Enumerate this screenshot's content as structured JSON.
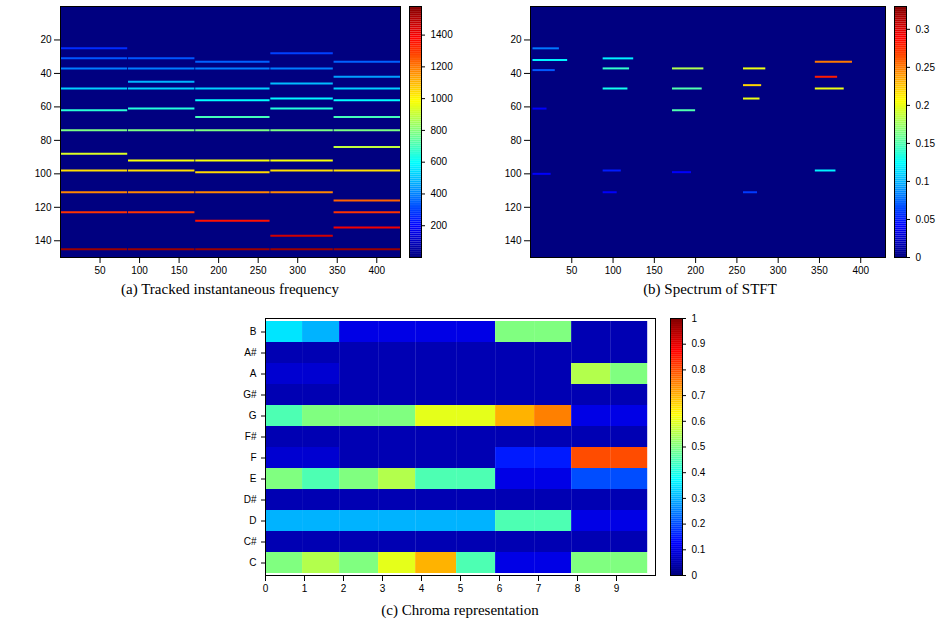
{
  "chart_data": [
    {
      "type": "heatmap",
      "title": "(a) Tracked instantaneous frequency",
      "xlim": [
        0,
        430
      ],
      "xticks": [
        50,
        100,
        150,
        200,
        250,
        300,
        350,
        400
      ],
      "ylim": [
        0,
        150
      ],
      "yticks": [
        20,
        40,
        60,
        80,
        100,
        120,
        140
      ],
      "background_value": 0,
      "colorbar_range": [
        0,
        1580
      ],
      "colorbar_ticks": [
        200,
        400,
        600,
        800,
        1000,
        1200,
        1400
      ],
      "segments": [
        {
          "bin": 25,
          "x_start": 1,
          "x_end": 85,
          "value": 265
        },
        {
          "bin": 31,
          "x_start": 1,
          "x_end": 85,
          "value": 330
        },
        {
          "bin": 37,
          "x_start": 1,
          "x_end": 85,
          "value": 392
        },
        {
          "bin": 49,
          "x_start": 1,
          "x_end": 85,
          "value": 520
        },
        {
          "bin": 62,
          "x_start": 1,
          "x_end": 85,
          "value": 657
        },
        {
          "bin": 74,
          "x_start": 1,
          "x_end": 85,
          "value": 785
        },
        {
          "bin": 88,
          "x_start": 1,
          "x_end": 85,
          "value": 933
        },
        {
          "bin": 98,
          "x_start": 1,
          "x_end": 85,
          "value": 1040
        },
        {
          "bin": 111,
          "x_start": 1,
          "x_end": 85,
          "value": 1177
        },
        {
          "bin": 123,
          "x_start": 1,
          "x_end": 85,
          "value": 1305
        },
        {
          "bin": 145,
          "x_start": 1,
          "x_end": 85,
          "value": 1538
        },
        {
          "bin": 31,
          "x_start": 86,
          "x_end": 170,
          "value": 330
        },
        {
          "bin": 37,
          "x_start": 86,
          "x_end": 170,
          "value": 392
        },
        {
          "bin": 45,
          "x_start": 86,
          "x_end": 170,
          "value": 478
        },
        {
          "bin": 49,
          "x_start": 86,
          "x_end": 170,
          "value": 520
        },
        {
          "bin": 61,
          "x_start": 86,
          "x_end": 170,
          "value": 647
        },
        {
          "bin": 74,
          "x_start": 86,
          "x_end": 170,
          "value": 785
        },
        {
          "bin": 92,
          "x_start": 86,
          "x_end": 170,
          "value": 975
        },
        {
          "bin": 98,
          "x_start": 86,
          "x_end": 170,
          "value": 1040
        },
        {
          "bin": 111,
          "x_start": 86,
          "x_end": 170,
          "value": 1177
        },
        {
          "bin": 123,
          "x_start": 86,
          "x_end": 170,
          "value": 1305
        },
        {
          "bin": 145,
          "x_start": 86,
          "x_end": 170,
          "value": 1538
        },
        {
          "bin": 33,
          "x_start": 171,
          "x_end": 265,
          "value": 350
        },
        {
          "bin": 37,
          "x_start": 171,
          "x_end": 265,
          "value": 392
        },
        {
          "bin": 49,
          "x_start": 171,
          "x_end": 265,
          "value": 520
        },
        {
          "bin": 56,
          "x_start": 171,
          "x_end": 265,
          "value": 594
        },
        {
          "bin": 66,
          "x_start": 171,
          "x_end": 265,
          "value": 700
        },
        {
          "bin": 74,
          "x_start": 171,
          "x_end": 265,
          "value": 785
        },
        {
          "bin": 92,
          "x_start": 171,
          "x_end": 265,
          "value": 975
        },
        {
          "bin": 99,
          "x_start": 171,
          "x_end": 265,
          "value": 1050
        },
        {
          "bin": 111,
          "x_start": 171,
          "x_end": 265,
          "value": 1177
        },
        {
          "bin": 128,
          "x_start": 171,
          "x_end": 265,
          "value": 1357
        },
        {
          "bin": 145,
          "x_start": 171,
          "x_end": 265,
          "value": 1538
        },
        {
          "bin": 28,
          "x_start": 266,
          "x_end": 345,
          "value": 297
        },
        {
          "bin": 37,
          "x_start": 266,
          "x_end": 345,
          "value": 392
        },
        {
          "bin": 46,
          "x_start": 266,
          "x_end": 345,
          "value": 488
        },
        {
          "bin": 55,
          "x_start": 266,
          "x_end": 345,
          "value": 583
        },
        {
          "bin": 61,
          "x_start": 266,
          "x_end": 345,
          "value": 647
        },
        {
          "bin": 74,
          "x_start": 266,
          "x_end": 345,
          "value": 785
        },
        {
          "bin": 92,
          "x_start": 266,
          "x_end": 345,
          "value": 975
        },
        {
          "bin": 98,
          "x_start": 266,
          "x_end": 345,
          "value": 1040
        },
        {
          "bin": 111,
          "x_start": 266,
          "x_end": 345,
          "value": 1177
        },
        {
          "bin": 137,
          "x_start": 266,
          "x_end": 345,
          "value": 1453
        },
        {
          "bin": 145,
          "x_start": 266,
          "x_end": 345,
          "value": 1538
        },
        {
          "bin": 33,
          "x_start": 346,
          "x_end": 430,
          "value": 350
        },
        {
          "bin": 42,
          "x_start": 346,
          "x_end": 430,
          "value": 445
        },
        {
          "bin": 49,
          "x_start": 346,
          "x_end": 430,
          "value": 520
        },
        {
          "bin": 56,
          "x_start": 346,
          "x_end": 430,
          "value": 594
        },
        {
          "bin": 66,
          "x_start": 346,
          "x_end": 430,
          "value": 700
        },
        {
          "bin": 74,
          "x_start": 346,
          "x_end": 430,
          "value": 785
        },
        {
          "bin": 84,
          "x_start": 346,
          "x_end": 430,
          "value": 891
        },
        {
          "bin": 98,
          "x_start": 346,
          "x_end": 430,
          "value": 1040
        },
        {
          "bin": 116,
          "x_start": 346,
          "x_end": 430,
          "value": 1230
        },
        {
          "bin": 123,
          "x_start": 346,
          "x_end": 430,
          "value": 1305
        },
        {
          "bin": 132,
          "x_start": 346,
          "x_end": 430,
          "value": 1400
        },
        {
          "bin": 145,
          "x_start": 346,
          "x_end": 430,
          "value": 1538
        }
      ]
    },
    {
      "type": "heatmap",
      "title": "(b) Spectrum of STFT",
      "xlim": [
        0,
        430
      ],
      "xticks": [
        50,
        100,
        150,
        200,
        250,
        300,
        350,
        400
      ],
      "ylim": [
        0,
        150
      ],
      "yticks": [
        20,
        40,
        60,
        80,
        100,
        120,
        140
      ],
      "background_value": 0,
      "colorbar_range": [
        0,
        0.33
      ],
      "colorbar_ticks": [
        0,
        0.05,
        0.1,
        0.15,
        0.2,
        0.25,
        0.3
      ],
      "segments": [
        {
          "bin": 25,
          "x_start": 3,
          "x_end": 35,
          "value": 0.08
        },
        {
          "bin": 32,
          "x_start": 3,
          "x_end": 45,
          "value": 0.12
        },
        {
          "bin": 38,
          "x_start": 3,
          "x_end": 30,
          "value": 0.07
        },
        {
          "bin": 61,
          "x_start": 3,
          "x_end": 20,
          "value": 0.04
        },
        {
          "bin": 100,
          "x_start": 3,
          "x_end": 25,
          "value": 0.04
        },
        {
          "bin": 31,
          "x_start": 88,
          "x_end": 125,
          "value": 0.12
        },
        {
          "bin": 37,
          "x_start": 88,
          "x_end": 120,
          "value": 0.14
        },
        {
          "bin": 49,
          "x_start": 88,
          "x_end": 118,
          "value": 0.13
        },
        {
          "bin": 98,
          "x_start": 88,
          "x_end": 110,
          "value": 0.05
        },
        {
          "bin": 111,
          "x_start": 88,
          "x_end": 105,
          "value": 0.04
        },
        {
          "bin": 37,
          "x_start": 172,
          "x_end": 210,
          "value": 0.18
        },
        {
          "bin": 49,
          "x_start": 172,
          "x_end": 208,
          "value": 0.15
        },
        {
          "bin": 62,
          "x_start": 172,
          "x_end": 200,
          "value": 0.15
        },
        {
          "bin": 99,
          "x_start": 172,
          "x_end": 195,
          "value": 0.04
        },
        {
          "bin": 37,
          "x_start": 258,
          "x_end": 285,
          "value": 0.2
        },
        {
          "bin": 47,
          "x_start": 258,
          "x_end": 280,
          "value": 0.22
        },
        {
          "bin": 55,
          "x_start": 258,
          "x_end": 278,
          "value": 0.2
        },
        {
          "bin": 111,
          "x_start": 258,
          "x_end": 275,
          "value": 0.06
        },
        {
          "bin": 33,
          "x_start": 345,
          "x_end": 390,
          "value": 0.25
        },
        {
          "bin": 42,
          "x_start": 345,
          "x_end": 372,
          "value": 0.28
        },
        {
          "bin": 49,
          "x_start": 345,
          "x_end": 380,
          "value": 0.2
        },
        {
          "bin": 98,
          "x_start": 345,
          "x_end": 370,
          "value": 0.12
        }
      ]
    },
    {
      "type": "heatmap",
      "title": "(c) Chroma representation",
      "xlim": [
        0,
        10
      ],
      "xticks": [
        0,
        1,
        2,
        3,
        4,
        5,
        6,
        7,
        8,
        9
      ],
      "categories": [
        "C",
        "C#",
        "D",
        "D#",
        "E",
        "F",
        "F#",
        "G",
        "G#",
        "A",
        "A#",
        "B"
      ],
      "colorbar_range": [
        0,
        1
      ],
      "colorbar_ticks": [
        0,
        0.1,
        0.2,
        0.3,
        0.4,
        0.5,
        0.6,
        0.7,
        0.8,
        0.9,
        1
      ],
      "x_edges": [
        0,
        0.95,
        1.9,
        2.9,
        3.85,
        4.9,
        5.9,
        6.9,
        7.85,
        8.85,
        9.8
      ],
      "values": [
        [
          0.5,
          0.55,
          0.5,
          0.6,
          0.7,
          0.45,
          0.1,
          0.1,
          0.5,
          0.5
        ],
        [
          0.05,
          0.05,
          0.05,
          0.05,
          0.05,
          0.05,
          0.05,
          0.05,
          0.05,
          0.05
        ],
        [
          0.3,
          0.3,
          0.3,
          0.3,
          0.3,
          0.3,
          0.45,
          0.45,
          0.1,
          0.1
        ],
        [
          0.05,
          0.05,
          0.05,
          0.05,
          0.05,
          0.05,
          0.05,
          0.05,
          0.05,
          0.05
        ],
        [
          0.5,
          0.45,
          0.5,
          0.55,
          0.45,
          0.45,
          0.1,
          0.1,
          0.2,
          0.2
        ],
        [
          0.08,
          0.08,
          0.05,
          0.05,
          0.05,
          0.05,
          0.15,
          0.15,
          0.8,
          0.8
        ],
        [
          0.05,
          0.05,
          0.05,
          0.05,
          0.05,
          0.05,
          0.05,
          0.05,
          0.05,
          0.05
        ],
        [
          0.45,
          0.5,
          0.5,
          0.5,
          0.6,
          0.6,
          0.7,
          0.75,
          0.1,
          0.1
        ],
        [
          0.05,
          0.05,
          0.05,
          0.05,
          0.05,
          0.05,
          0.05,
          0.05,
          0.05,
          0.05
        ],
        [
          0.08,
          0.08,
          0.05,
          0.05,
          0.05,
          0.05,
          0.05,
          0.05,
          0.55,
          0.5
        ],
        [
          0.05,
          0.05,
          0.05,
          0.05,
          0.05,
          0.05,
          0.05,
          0.05,
          0.05,
          0.05
        ],
        [
          0.35,
          0.3,
          0.1,
          0.1,
          0.1,
          0.1,
          0.5,
          0.5,
          0.05,
          0.05
        ]
      ]
    }
  ]
}
